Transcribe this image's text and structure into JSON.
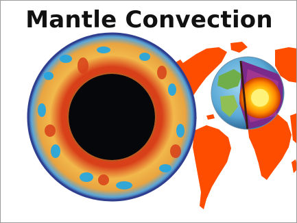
{
  "title": "Mantle Convection",
  "colors": {
    "continent": "#ff4d00",
    "core": "#05070a",
    "mantle_hot": "#e0501a",
    "mantle_warm": "#f2b84b",
    "mantle_cool": "#1ea7e6",
    "mantle_rim": "#2f3f8f",
    "border": "#9a9a9a"
  },
  "icons": {
    "globe": "earth-cutaway-icon",
    "cross_section": "mantle-cross-section-icon",
    "map": "world-map-continents"
  }
}
